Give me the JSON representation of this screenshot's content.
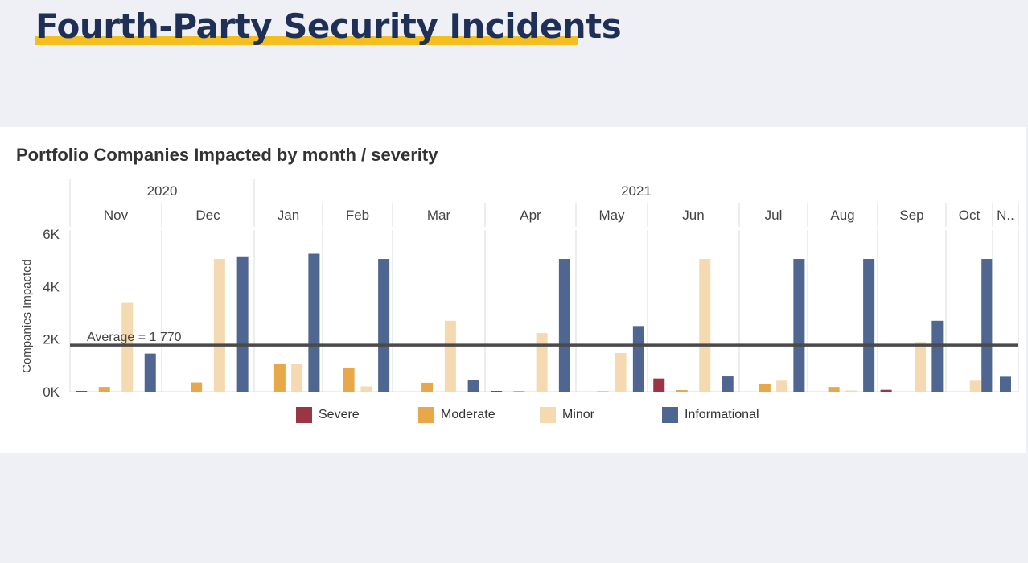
{
  "page_title": "Fourth-Party Security Incidents",
  "colors": {
    "severe": "#9b3545",
    "moderate": "#e8a84a",
    "minor": "#f5d9b1",
    "informational": "#4e6690",
    "average_line": "#4a4a4a",
    "accent_underline": "#f4bf1e"
  },
  "chart_data": {
    "type": "bar",
    "title": "Portfolio Companies Impacted by month / severity",
    "ylabel": "Companies Impacted",
    "ylim": [
      0,
      6000
    ],
    "y_ticks": [
      {
        "value": 0,
        "label": "0K"
      },
      {
        "value": 2000,
        "label": "2K"
      },
      {
        "value": 4000,
        "label": "4K"
      },
      {
        "value": 6000,
        "label": "6K"
      }
    ],
    "years": [
      {
        "label": "2020",
        "months": [
          "Nov",
          "Dec"
        ]
      },
      {
        "label": "2021",
        "months": [
          "Jan",
          "Feb",
          "Mar",
          "Apr",
          "May",
          "Jun",
          "Jul",
          "Aug",
          "Sep",
          "Oct",
          "N.."
        ]
      }
    ],
    "categories": [
      "Nov",
      "Dec",
      "Jan",
      "Feb",
      "Mar",
      "Apr",
      "May",
      "Jun",
      "Jul",
      "Aug",
      "Sep",
      "Oct",
      "N.."
    ],
    "series": [
      {
        "name": "Severe",
        "values": [
          30,
          null,
          null,
          null,
          null,
          30,
          null,
          500,
          null,
          null,
          70,
          null,
          null
        ]
      },
      {
        "name": "Moderate",
        "values": [
          180,
          350,
          1060,
          900,
          340,
          30,
          20,
          60,
          280,
          180,
          null,
          null,
          null
        ]
      },
      {
        "name": "Minor",
        "values": [
          3380,
          5050,
          1060,
          200,
          2700,
          2230,
          1470,
          5050,
          420,
          50,
          1890,
          420,
          null
        ]
      },
      {
        "name": "Informational",
        "values": [
          1450,
          5150,
          5250,
          5050,
          450,
          5050,
          2500,
          580,
          5050,
          5050,
          2700,
          5050,
          570
        ]
      }
    ],
    "average": {
      "value": 1770,
      "label": "Average = 1 770"
    },
    "legend_position": "bottom",
    "grid": false
  }
}
